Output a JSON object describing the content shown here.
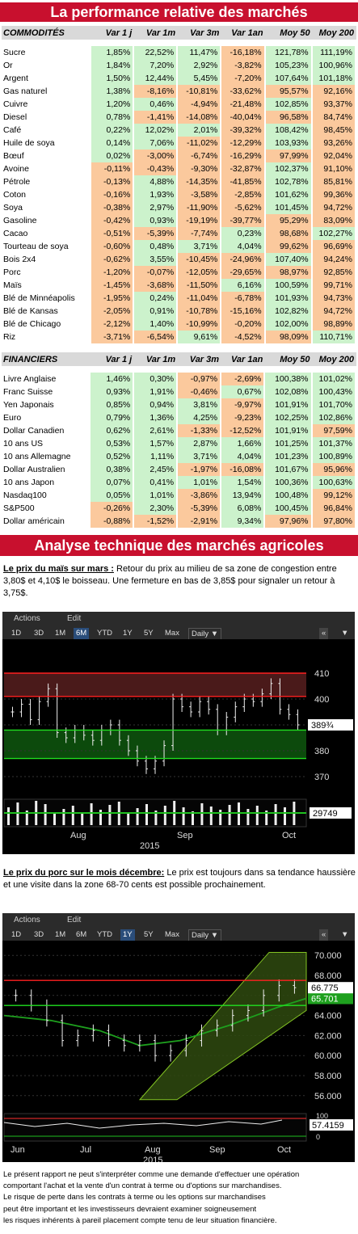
{
  "title": "La performance relative des marchés",
  "commodities": {
    "headers": [
      "COMMODITÉS",
      "Var 1 j",
      "Var 1m",
      "Var 3m",
      "Var 1an",
      "Moy 50",
      "Moy 200"
    ],
    "rows": [
      [
        "Sucre",
        "1,85%",
        "22,52%",
        "11,47%",
        "-16,18%",
        "121,78%",
        "111,19%"
      ],
      [
        "Or",
        "1,84%",
        "7,20%",
        "2,92%",
        "-3,82%",
        "105,23%",
        "100,96%"
      ],
      [
        "Argent",
        "1,50%",
        "12,44%",
        "5,45%",
        "-7,20%",
        "107,64%",
        "101,18%"
      ],
      [
        "Gas naturel",
        "1,38%",
        "-8,16%",
        "-10,81%",
        "-33,62%",
        "95,57%",
        "92,16%"
      ],
      [
        "Cuivre",
        "1,20%",
        "0,46%",
        "-4,94%",
        "-21,48%",
        "102,85%",
        "93,37%"
      ],
      [
        "Diesel",
        "0,78%",
        "-1,41%",
        "-14,08%",
        "-40,04%",
        "96,58%",
        "84,74%"
      ],
      [
        "Café",
        "0,22%",
        "12,02%",
        "2,01%",
        "-39,32%",
        "108,42%",
        "98,45%"
      ],
      [
        "Huile de soya",
        "0,14%",
        "7,06%",
        "-11,02%",
        "-12,29%",
        "103,93%",
        "93,26%"
      ],
      [
        "Bœuf",
        "0,02%",
        "-3,00%",
        "-6,74%",
        "-16,29%",
        "97,99%",
        "92,04%"
      ],
      [
        "Avoine",
        "-0,11%",
        "-0,43%",
        "-9,30%",
        "-32,87%",
        "102,37%",
        "91,10%"
      ],
      [
        "Pétrole",
        "-0,13%",
        "4,88%",
        "-14,35%",
        "-41,85%",
        "102,78%",
        "85,81%"
      ],
      [
        "Coton",
        "-0,16%",
        "1,93%",
        "-3,58%",
        "-2,85%",
        "101,62%",
        "99,36%"
      ],
      [
        "Soya",
        "-0,38%",
        "2,97%",
        "-11,90%",
        "-5,62%",
        "101,45%",
        "94,72%"
      ],
      [
        "Gasoline",
        "-0,42%",
        "0,93%",
        "-19,19%",
        "-39,77%",
        "95,29%",
        "83,09%"
      ],
      [
        "Cacao",
        "-0,51%",
        "-5,39%",
        "-7,74%",
        "0,23%",
        "98,68%",
        "102,27%"
      ],
      [
        "Tourteau de soya",
        "-0,60%",
        "0,48%",
        "3,71%",
        "4,04%",
        "99,62%",
        "96,69%"
      ],
      [
        "Bois 2x4",
        "-0,62%",
        "3,55%",
        "-10,45%",
        "-24,96%",
        "107,40%",
        "94,24%"
      ],
      [
        "Porc",
        "-1,20%",
        "-0,07%",
        "-12,05%",
        "-29,65%",
        "98,97%",
        "92,85%"
      ],
      [
        "Maïs",
        "-1,45%",
        "-3,68%",
        "-11,50%",
        "6,16%",
        "100,59%",
        "99,71%"
      ],
      [
        "Blé de Minnéapolis",
        "-1,95%",
        "0,24%",
        "-11,04%",
        "-6,78%",
        "101,93%",
        "94,73%"
      ],
      [
        "Blé de Kansas",
        "-2,05%",
        "0,91%",
        "-10,78%",
        "-15,16%",
        "102,82%",
        "94,72%"
      ],
      [
        "Blé de Chicago",
        "-2,12%",
        "1,40%",
        "-10,99%",
        "-0,20%",
        "102,00%",
        "98,89%"
      ],
      [
        "Riz",
        "-3,71%",
        "-6,54%",
        "9,61%",
        "-4,52%",
        "98,09%",
        "110,71%"
      ]
    ]
  },
  "financials": {
    "headers": [
      "FINANCIERS",
      "Var 1 j",
      "Var 1m",
      "Var 3m",
      "Var 1an",
      "Moy 50",
      "Moy 200"
    ],
    "rows": [
      [
        "Livre Anglaise",
        "1,46%",
        "0,30%",
        "-0,97%",
        "-2,69%",
        "100,38%",
        "101,02%"
      ],
      [
        "Franc Suisse",
        "0,93%",
        "1,91%",
        "-0,46%",
        "0,67%",
        "102,08%",
        "100,43%"
      ],
      [
        "Yen Japonais",
        "0,85%",
        "0,94%",
        "3,81%",
        "-9,97%",
        "101,91%",
        "101,70%"
      ],
      [
        "Euro",
        "0,79%",
        "1,36%",
        "4,25%",
        "-9,23%",
        "102,25%",
        "102,86%"
      ],
      [
        "Dollar Canadien",
        "0,62%",
        "2,61%",
        "-1,33%",
        "-12,52%",
        "101,91%",
        "97,59%"
      ],
      [
        "10 ans US",
        "0,53%",
        "1,57%",
        "2,87%",
        "1,66%",
        "101,25%",
        "101,37%"
      ],
      [
        "10 ans Allemagne",
        "0,52%",
        "1,11%",
        "3,71%",
        "4,04%",
        "101,23%",
        "100,89%"
      ],
      [
        "Dollar Australien",
        "0,38%",
        "2,45%",
        "-1,97%",
        "-16,08%",
        "101,67%",
        "95,96%"
      ],
      [
        "10 ans Japon",
        "0,07%",
        "0,41%",
        "1,01%",
        "1,54%",
        "100,36%",
        "100,63%"
      ],
      [
        "Nasdaq100",
        "0,05%",
        "1,01%",
        "-3,86%",
        "13,94%",
        "100,48%",
        "99,12%"
      ],
      [
        "S&P500",
        "-0,26%",
        "2,30%",
        "-5,39%",
        "6,08%",
        "100,45%",
        "96,84%"
      ],
      [
        "Dollar américain",
        "-0,88%",
        "-1,52%",
        "-2,91%",
        "9,34%",
        "97,96%",
        "97,80%"
      ]
    ]
  },
  "section2_title": "Analyse technique des marchés agricoles",
  "corn": {
    "heading": "Le prix du maïs sur mars :",
    "text": " Retour du prix au milieu de sa zone de congestion entre 3,80$ et 4,10$ le boisseau. Une fermeture en bas de 3,85$ pour signaler un retour à 3,75$."
  },
  "pork": {
    "heading": "Le prix du porc sur le mois décembre:",
    "text": " Le prix est toujours dans sa tendance haussière et une visite dans la zone 68-70 cents est possible prochainement."
  },
  "toolbar": {
    "actions": "Actions",
    "edit": "Edit",
    "periods": [
      "1D",
      "3D",
      "1M",
      "6M",
      "YTD",
      "1Y",
      "5Y",
      "Max"
    ],
    "daily": "Daily ▼",
    "nav": "«",
    "arrow": "▼"
  },
  "chart_data": [
    {
      "type": "candlestick",
      "title": "",
      "period_selected": "6M",
      "y_ticks": [
        370,
        380,
        390,
        400,
        410
      ],
      "ylim": [
        365,
        415
      ],
      "last_price": "389¾",
      "volume_label": "29749",
      "x_ticks": [
        "Aug",
        "Sep",
        "Oct"
      ],
      "year": "2015",
      "x": [
        "Jul 20",
        "Jul 22",
        "Jul 24",
        "Jul 27",
        "Jul 29",
        "Jul 31",
        "Aug 3",
        "Aug 5",
        "Aug 7",
        "Aug 10",
        "Aug 12",
        "Aug 14",
        "Aug 17",
        "Aug 19",
        "Aug 21",
        "Aug 24",
        "Aug 26",
        "Aug 28",
        "Aug 31",
        "Sep 2",
        "Sep 4",
        "Sep 8",
        "Sep 10",
        "Sep 14",
        "Sep 16",
        "Sep 18",
        "Sep 22",
        "Sep 24",
        "Sep 28",
        "Sep 30",
        "Oct 2",
        "Oct 5",
        "Oct 7"
      ],
      "close": [
        395,
        398,
        392,
        399,
        404,
        387,
        385,
        388,
        386,
        384,
        388,
        390,
        384,
        380,
        376,
        373,
        376,
        382,
        400,
        397,
        395,
        399,
        396,
        388,
        393,
        397,
        400,
        399,
        402,
        406,
        396,
        394,
        390
      ],
      "lines": {
        "red": [
          410,
          401
        ],
        "green": [
          388,
          377
        ]
      }
    },
    {
      "type": "candlestick",
      "title": "",
      "period_selected": "1Y",
      "y_ticks": [
        56,
        58,
        60,
        62,
        64,
        66,
        68,
        70
      ],
      "ylim": [
        55.5,
        70.5
      ],
      "last_price": "66.775",
      "ma_label": "65.701",
      "osc_label": "57.4159",
      "osc_ticks": [
        100,
        50,
        0
      ],
      "x_ticks": [
        "Jun",
        "Jul",
        "Aug",
        "Sep",
        "Oct"
      ],
      "year": "2015",
      "x": [
        "Jun 1",
        "Jun 8",
        "Jun 15",
        "Jun 22",
        "Jun 29",
        "Jul 6",
        "Jul 13",
        "Jul 20",
        "Jul 27",
        "Aug 3",
        "Aug 10",
        "Aug 17",
        "Aug 24",
        "Aug 31",
        "Sep 7",
        "Sep 14",
        "Sep 21",
        "Sep 28",
        "Oct 5"
      ],
      "close": [
        66,
        65,
        63.5,
        61.5,
        62,
        62.5,
        61.5,
        61,
        61.5,
        60,
        60.5,
        61.5,
        62.5,
        63,
        64,
        64.5,
        66,
        67,
        66.775
      ],
      "lines": {
        "red": 67.5,
        "green": 65
      }
    }
  ],
  "disclaimer": [
    "Le présent rapport ne peut s'interpréter comme une demande d'effectuer une opération",
    "comportant l'achat et la vente d'un contrat à terme ou d'options sur marchandises.",
    "Le risque de perte dans les contrats à terme ou les options sur marchandises",
    "peut être important et les investisseurs devraient examiner soigneusement",
    "les risques inhérents à pareil placement compte tenu de leur situation financière."
  ]
}
